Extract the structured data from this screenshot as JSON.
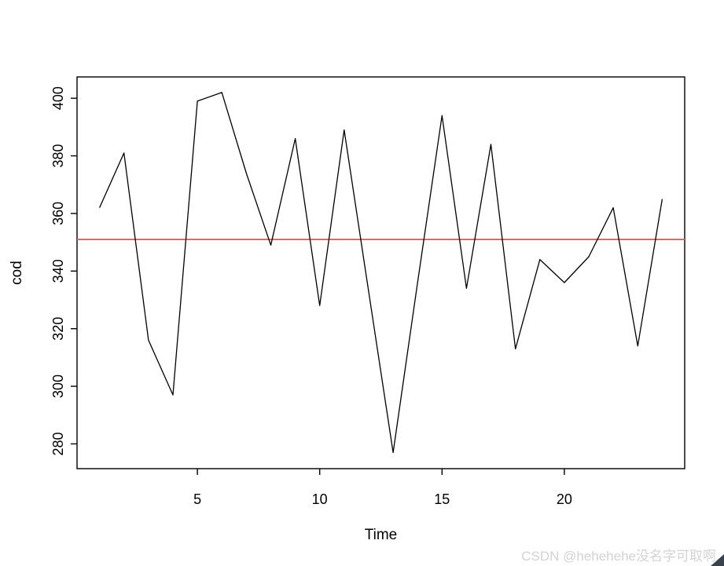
{
  "page": {
    "background": "#ffffff"
  },
  "watermark": {
    "text": "CSDN @hehehehe没名字可取啊",
    "color": "#d3d3d3"
  },
  "corner_fold": {
    "color": "#39424c"
  },
  "chart_data": {
    "type": "line",
    "title": "",
    "xlabel": "Time",
    "ylabel": "cod",
    "x": [
      1,
      2,
      3,
      4,
      5,
      6,
      7,
      8,
      9,
      10,
      11,
      12,
      13,
      14,
      15,
      16,
      17,
      18,
      19,
      20,
      21,
      22,
      23,
      24
    ],
    "series": [
      {
        "name": "cod",
        "color": "#000000",
        "values": [
          362,
          381,
          316,
          297,
          399,
          402,
          374,
          349,
          386,
          328,
          389,
          333,
          277,
          336,
          394,
          334,
          384,
          313,
          344,
          336,
          345,
          362,
          314,
          365
        ]
      }
    ],
    "mean_line": {
      "value": 351,
      "color": "#f25f5f"
    },
    "x_ticks": [
      5,
      10,
      15,
      20
    ],
    "y_ticks": [
      280,
      300,
      320,
      340,
      360,
      380,
      400
    ],
    "xlim": [
      0.08,
      24.92
    ],
    "ylim": [
      271.4,
      407.4
    ],
    "grid": false,
    "legend": null,
    "axis_color": "#000000"
  }
}
